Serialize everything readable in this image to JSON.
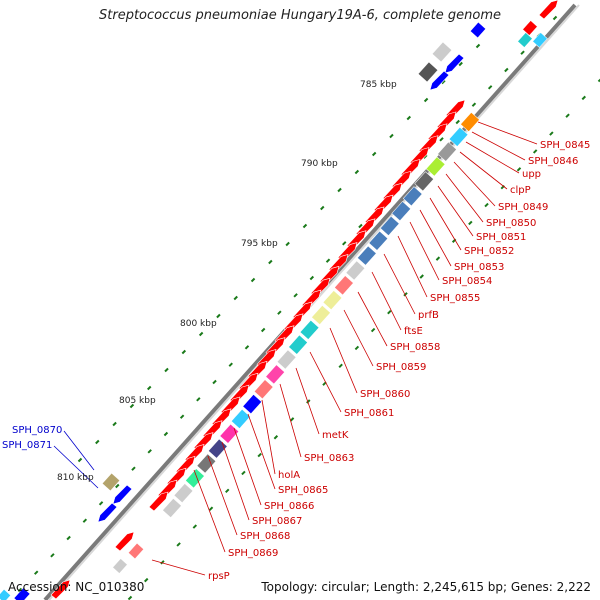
{
  "title": "Streptococcus pneumoniae Hungary19A-6, complete genome",
  "footer": {
    "accession": "Accession: NC_010380",
    "summary": "Topology: circular; Length: 2,245,615 bp; Genes: 2,222"
  },
  "scale_labels": [
    "785 kbp",
    "790 kbp",
    "795 kbp",
    "800 kbp",
    "805 kbp",
    "810 kbp"
  ],
  "gene_labels_red": [
    "SPH_0845",
    "SPH_0846",
    "upp",
    "clpP",
    "SPH_0849",
    "SPH_0850",
    "SPH_0851",
    "SPH_0852",
    "SPH_0853",
    "SPH_0854",
    "SPH_0855",
    "prfB",
    "ftsE",
    "SPH_0858",
    "SPH_0859",
    "SPH_0860",
    "SPH_0861",
    "metK",
    "SPH_0863",
    "holA",
    "SPH_0865",
    "SPH_0866",
    "SPH_0867",
    "SPH_0868",
    "SPH_0869",
    "rpsP"
  ],
  "gene_labels_blue": [
    "SPH_0870",
    "SPH_0871"
  ],
  "colors": {
    "forward_gene": "#ff0000",
    "reverse_gene": "#0000ff",
    "backbone": "#7a7a7a",
    "tick": "#1a7a1a",
    "label_red": "#cc0000",
    "label_blue": "#0000cc"
  }
}
